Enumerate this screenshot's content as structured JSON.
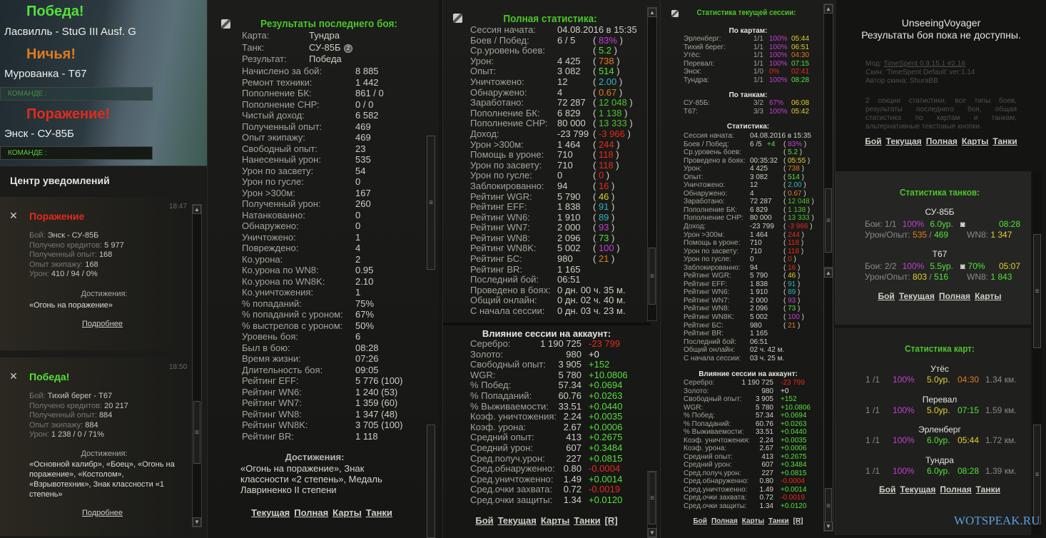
{
  "colors": {
    "accent_green": "#4cc52a",
    "purple": "#c23fd4",
    "yellow": "#e2d030",
    "orange": "#e07b1e",
    "red": "#e42a1c",
    "cyan": "#2fb3c0",
    "lime": "#53e23a",
    "watermark": "#5aa0e0"
  },
  "left": {
    "battles": [
      {
        "result": "Победа!",
        "color": "lime",
        "desc": "Ласвилль - StuG III Ausf. G"
      },
      {
        "result": "Ничья!",
        "color": "orange",
        "desc": "Мурованка - Т67"
      },
      {
        "result": "Поражение!",
        "color": "red",
        "desc": "Энск - СУ-85Б"
      }
    ],
    "team_label": "КОМАНДЕ :",
    "notifications": {
      "title": "Центр уведомлений",
      "cards": [
        {
          "time": "18:47",
          "title": "Поражение",
          "color": "red",
          "icon": "crossed-swords-icon",
          "lines": [
            [
              "Бой: ",
              "Энск - СУ-85Б"
            ],
            [
              "Получено кредитов: ",
              "5 977"
            ],
            [
              "Полученный опыт: ",
              "168"
            ],
            [
              "Опыт экипажу: ",
              "168"
            ],
            [
              "Урон: ",
              "410 / 94 / 0%"
            ]
          ],
          "ach_title": "Достижения:",
          "ach_text": "«Огонь на поражение»",
          "more": "Подробнее"
        },
        {
          "time": "18:50",
          "title": "Победа!",
          "color": "lime",
          "icon": "crossed-swords-icon",
          "lines": [
            [
              "Бой: ",
              "Тихий берег - Т67"
            ],
            [
              "Получено кредитов: ",
              "20 217"
            ],
            [
              "Полученный опыт: ",
              "884"
            ],
            [
              "Опыт экипажу: ",
              "884"
            ],
            [
              "Урон: ",
              "1 238 / 0 / 71%"
            ]
          ],
          "ach_title": "Достижения:",
          "ach_text": "«Основной калибр», «Боец», «Огонь на поражение», «Костолом», «Взрывотехник», Знак классности «1 степень»",
          "more": "Подробнее"
        }
      ]
    }
  },
  "last_battle": {
    "title": "Результаты последнего боя:",
    "head_rows": [
      [
        "Карта:",
        "Тундра"
      ],
      [
        "Танк:",
        "СУ-85Б"
      ],
      [
        "Результат:",
        "Победа"
      ]
    ],
    "tank_badge": "2",
    "rows": [
      [
        "Начислено за бой:",
        "8 885"
      ],
      [
        "Ремонт техники:",
        "1 442"
      ],
      [
        "Пополнение БК:",
        "861 / 0"
      ],
      [
        "Пополнение СНР:",
        "0 / 0"
      ],
      [
        "Чистый доход:",
        "6 582"
      ],
      [
        "Полученный опыт:",
        "469"
      ],
      [
        "Опыт экипажу:",
        "469"
      ],
      [
        "Свободный опыт:",
        "23"
      ],
      [
        "Нанесенный урон:",
        "535"
      ],
      [
        "Урон по засвету:",
        "54"
      ],
      [
        "Урон по гусле:",
        "0"
      ],
      [
        "Урон >300м:",
        "167"
      ],
      [
        "Полученный урон:",
        "260"
      ],
      [
        "Натанкованно:",
        "0"
      ],
      [
        "Обнаружено:",
        "0"
      ],
      [
        "Уничтожено:",
        "1"
      ],
      [
        "Повреждено:",
        "4"
      ],
      [
        "Ко.урона:",
        "2"
      ],
      [
        "Ко.урона по WN8:",
        "0.95"
      ],
      [
        "Ко.урона по WN8K:",
        "2.10"
      ],
      [
        "Ко.уничтожения:",
        "1"
      ],
      [
        "% попаданий:",
        "75%"
      ],
      [
        "% попаданий с уроном:",
        "67%"
      ],
      [
        "% выстрелов с уроном:",
        "50%"
      ],
      [
        "Уровень боя:",
        "6"
      ],
      [
        "Был в бою:",
        "08:28"
      ],
      [
        "Время жизни:",
        "07:26"
      ],
      [
        "Длительность боя:",
        "09:05"
      ],
      [
        "Рейтинг EFF:",
        "5 776 (100)"
      ],
      [
        "Рейтинг WN6:",
        "1 240 (53)"
      ],
      [
        "Рейтинг WN7:",
        "1 359 (60)"
      ],
      [
        "Рейтинг WN8:",
        "1 347 (48)"
      ],
      [
        "Рейтинг WN8K:",
        "3 705 (100)"
      ],
      [
        "Рейтинг BR:",
        "1 118"
      ]
    ],
    "achievements_title": "Достижения:",
    "achievements_text": "«Огонь на поражение», Знак классности «2 степень», Медаль Лавриненко II степени",
    "links": [
      "Текущая",
      "Полная",
      "Карты",
      "Танки"
    ]
  },
  "full_stats": {
    "title": "Полная статистика:",
    "rows": [
      [
        "Сессия начата:",
        "04.08.2016 в 15:35"
      ],
      [
        "Боев / Побед:",
        "6 / 5",
        "83%",
        "purple"
      ],
      [
        "Ср.уровень боев:",
        "",
        "5.2",
        "lime"
      ],
      [
        "Урон:",
        "4 425",
        "738",
        "orange"
      ],
      [
        "Опыт:",
        "3 082",
        "514",
        "lime"
      ],
      [
        "Уничтожено:",
        "12",
        "2.00",
        "cyan"
      ],
      [
        "Обнаружено:",
        "4",
        "0.67",
        "orange"
      ],
      [
        "Заработано:",
        "72 287",
        "12 048",
        "green"
      ],
      [
        "Пополнение БК:",
        "6 829",
        "1 138",
        "green"
      ],
      [
        "Пополнение СНР:",
        "80 000",
        "13 333",
        "green"
      ],
      [
        "Доход:",
        "-23 799",
        "-3 966",
        "red"
      ],
      [
        "Урон >300м:",
        "1 464",
        "244",
        "red"
      ],
      [
        "Помощь в уроне:",
        "710",
        "118",
        "red"
      ],
      [
        "Урон по засвету:",
        "710",
        "118",
        "red"
      ],
      [
        "Урон по гусле:",
        "0",
        "0",
        "red"
      ],
      [
        "Заблокированно:",
        "94",
        "16",
        "red"
      ],
      [
        "Рейтинг WGR:",
        "5 790",
        "46",
        "yellow"
      ],
      [
        "Рейтинг EFF:",
        "1 838",
        "91",
        "cyan"
      ],
      [
        "Рейтинг WN6:",
        "1 910",
        "89",
        "cyan"
      ],
      [
        "Рейтинг WN7:",
        "2 000",
        "93",
        "purple"
      ],
      [
        "Рейтинг WN8:",
        "2 096",
        "73",
        "lime"
      ],
      [
        "Рейтинг WN8K:",
        "5 002",
        "100",
        "purple"
      ],
      [
        "Рейтинг БС:",
        "980",
        "21",
        "orange"
      ],
      [
        "Рейтинг BR:",
        "1 165"
      ],
      [
        "Последний бой:",
        "06:51"
      ],
      [
        "Проведено в боях:",
        "0 дн. 00 ч. 35 м."
      ],
      [
        "Общий онлайн:",
        "0 дн. 02 ч. 40 м."
      ],
      [
        "С начала сессии:",
        "0 дн. 03 ч. 23 м."
      ]
    ],
    "influence_title": "Влияние сессии на аккаунт:",
    "influence_rows": [
      [
        "Серебро:",
        "1 190 725",
        "-23 799",
        "red"
      ],
      [
        "Золото:",
        "980",
        "+0",
        "white"
      ],
      [
        "Свободный опыт:",
        "3 905",
        "+152",
        "lime"
      ],
      [
        "WGR:",
        "5 780",
        "+10.0806",
        "lime"
      ],
      [
        "% Побед:",
        "57.34",
        "+0.0694",
        "lime"
      ],
      [
        "% Попаданий:",
        "60.76",
        "+0.0263",
        "lime"
      ],
      [
        "% Выживаемости:",
        "33.51",
        "+0.0440",
        "lime"
      ],
      [
        "Коэф. уничтожения:",
        "2.24",
        "+0.0035",
        "lime"
      ],
      [
        "Коэф. урона:",
        "2.67",
        "+0.0006",
        "lime"
      ],
      [
        "Средний опыт:",
        "413",
        "+0.2675",
        "lime"
      ],
      [
        "Средний урон:",
        "607",
        "+0.3484",
        "lime"
      ],
      [
        "Сред.получ.урон:",
        "227",
        "+0.0815",
        "lime"
      ],
      [
        "Сред.обнаруженно:",
        "0.80",
        "-0.0004",
        "red"
      ],
      [
        "Сред.уничтоженно:",
        "1.49",
        "+0.0014",
        "lime"
      ],
      [
        "Сред.очки захвата:",
        "0.72",
        "-0.0019",
        "red"
      ],
      [
        "Сред.очки защиты:",
        "1.34",
        "+0.0120",
        "lime"
      ]
    ],
    "links": [
      "Бой",
      "Текущая",
      "Карты",
      "Танки",
      "[R]"
    ]
  },
  "session": {
    "title": "Статистика текущей сессии:",
    "maps_title": "По картам:",
    "maps": [
      [
        "Эрленберг:",
        "1/1",
        "100%",
        "purple",
        "05:44",
        "yellow"
      ],
      [
        "Тихий берег:",
        "1/1",
        "100%",
        "purple",
        "06:51",
        "yellow"
      ],
      [
        "Утёс:",
        "1/1",
        "100%",
        "purple",
        "04:30",
        "orange"
      ],
      [
        "Перевал:",
        "1/1",
        "100%",
        "purple",
        "07:15",
        "lime"
      ],
      [
        "Энск:",
        "1/0",
        "0%",
        "red",
        "02:41",
        "red"
      ],
      [
        "Тундра:",
        "1/1",
        "100%",
        "purple",
        "08:28",
        "lime"
      ]
    ],
    "tanks_title": "По танкам:",
    "tanks": [
      [
        "СУ-85Б:",
        "3/2",
        "67%",
        "purple",
        "06:08",
        "yellow"
      ],
      [
        "Т67:",
        "3/3",
        "100%",
        "purple",
        "05:42",
        "yellow"
      ]
    ],
    "stats_title": "Статистика:",
    "rows": [
      [
        "Сессия начата:",
        "04.08.2016 в 15:35"
      ],
      [
        "Боев / Побед:",
        "6 /5",
        "83%",
        "purple",
        "+4"
      ],
      [
        "Ср.уровень боев:",
        "",
        "5.2",
        "lime"
      ],
      [
        "Проведено в боях:",
        "00:35:32",
        "05:55",
        "yellow"
      ],
      [
        "Урон:",
        "4 425",
        "738",
        "orange"
      ],
      [
        "Опыт:",
        "3 082",
        "514",
        "lime"
      ],
      [
        "Уничтожено:",
        "12",
        "2.00",
        "cyan"
      ],
      [
        "Обнаружено:",
        "4",
        "0.67",
        "orange"
      ],
      [
        "Заработано:",
        "72 287",
        "12 048",
        "green"
      ],
      [
        "Пополнение БК:",
        "6 829",
        "1 138",
        "green"
      ],
      [
        "Пополнение СНР:",
        "80 000",
        "13 333",
        "green"
      ],
      [
        "Доход:",
        "-23 799",
        "-3 966",
        "red"
      ],
      [
        "Урон >300м:",
        "1 464",
        "244",
        "red"
      ],
      [
        "Помощь в уроне:",
        "710",
        "118",
        "red"
      ],
      [
        "Урон по засвету:",
        "710",
        "118",
        "red"
      ],
      [
        "Урон по гусле:",
        "0",
        "0",
        "red"
      ],
      [
        "Заблокированно:",
        "94",
        "16",
        "red"
      ],
      [
        "Рейтинг WGR:",
        "5 790",
        "46",
        "yellow"
      ],
      [
        "Рейтинг EFF:",
        "1 838",
        "91",
        "cyan"
      ],
      [
        "Рейтинг WN6:",
        "1 910",
        "89",
        "cyan"
      ],
      [
        "Рейтинг WN7:",
        "2 000",
        "93",
        "purple"
      ],
      [
        "Рейтинг WN8:",
        "2 096",
        "73",
        "lime"
      ],
      [
        "Рейтинг WN8K:",
        "5 002",
        "100",
        "purple"
      ],
      [
        "Рейтинг БС:",
        "980",
        "21",
        "orange"
      ],
      [
        "Рейтинг BR:",
        "1 165"
      ],
      [
        "Последний бой:",
        "06:51"
      ],
      [
        "Общий онлайн:",
        "02 ч. 42 м."
      ],
      [
        "С начала сессии:",
        "03 ч. 25 м."
      ]
    ],
    "influence_title": "Влияние сессии на аккаунт:",
    "links": [
      "Бой",
      "Полная",
      "Карты",
      "Танки",
      "[R]"
    ]
  },
  "info": {
    "player": "UnseeingVoyager",
    "status": "Результаты боя пока не доступны.",
    "mod_label": "Мод: ",
    "mod_link": "TimeSpent 0.9.15.1 #2.16",
    "skin": "Скин: 'TimeSpent Default' ver:1.14",
    "skin_author": "Автор скина: ShuraBB",
    "description": "2 секции статистики, все типы боев, результаты последнего боя, общая статистика по картам и танкам, альтернативные текстовые кнопки.",
    "links": [
      "Бой",
      "Текущая",
      "Полная",
      "Карты",
      "Танки"
    ]
  },
  "tanks_stats": {
    "title": "Статистика танков:",
    "tanks": [
      {
        "name": "СУ-85Б",
        "battles": "Бои: 1/1",
        "win": "100%",
        "tier": "6.0ур.",
        "tier_color": "lime",
        "mastery": "",
        "time": "08:28",
        "time_color": "lime",
        "dmg_label": "Урон/Опыт: ",
        "dmg": "535",
        "dmg_color": "orange",
        "xp": "469",
        "wn8_label": "WN8: ",
        "wn8": "1 347",
        "wn8_color": "yellow"
      },
      {
        "name": "Т67",
        "battles": "Бои: 2/2",
        "win": "100%",
        "tier": "5.5ур.",
        "tier_color": "lime",
        "mastery": "70%",
        "time": "05:07",
        "time_color": "yellow",
        "dmg_label": "Урон/Опыт: ",
        "dmg": "803",
        "dmg_color": "yellow",
        "xp": "516",
        "wn8_label": "WN8: ",
        "wn8": "1 843",
        "wn8_color": "lime"
      }
    ],
    "links": [
      "Бой",
      "Текущая",
      "Полная",
      "Карты"
    ]
  },
  "maps_stats": {
    "title": "Статистика карт:",
    "maps": [
      {
        "name": "Утёс",
        "battles": "1 /1",
        "win": "100%",
        "tier": "5.0ур.",
        "tier_color": "yellow",
        "time": "04:30",
        "time_color": "orange",
        "dist": "1.34 км."
      },
      {
        "name": "Перевал",
        "battles": "1 /1",
        "win": "100%",
        "tier": "5.0ур.",
        "tier_color": "yellow",
        "time": "07:15",
        "time_color": "lime",
        "dist": "1.59 км."
      },
      {
        "name": "Эрленберг",
        "battles": "1 /1",
        "win": "100%",
        "tier": "6.0ур.",
        "tier_color": "lime",
        "time": "05:44",
        "time_color": "yellow",
        "dist": "1.72 км."
      },
      {
        "name": "Тундра",
        "battles": "1 /1",
        "win": "100%",
        "tier": "6.0ур.",
        "tier_color": "lime",
        "time": "08:28",
        "time_color": "lime",
        "dist": "1.39 км."
      }
    ],
    "links": [
      "Бой",
      "Текущая",
      "Полная",
      "Танки"
    ]
  },
  "watermark": "WOTSPEAK.RU"
}
